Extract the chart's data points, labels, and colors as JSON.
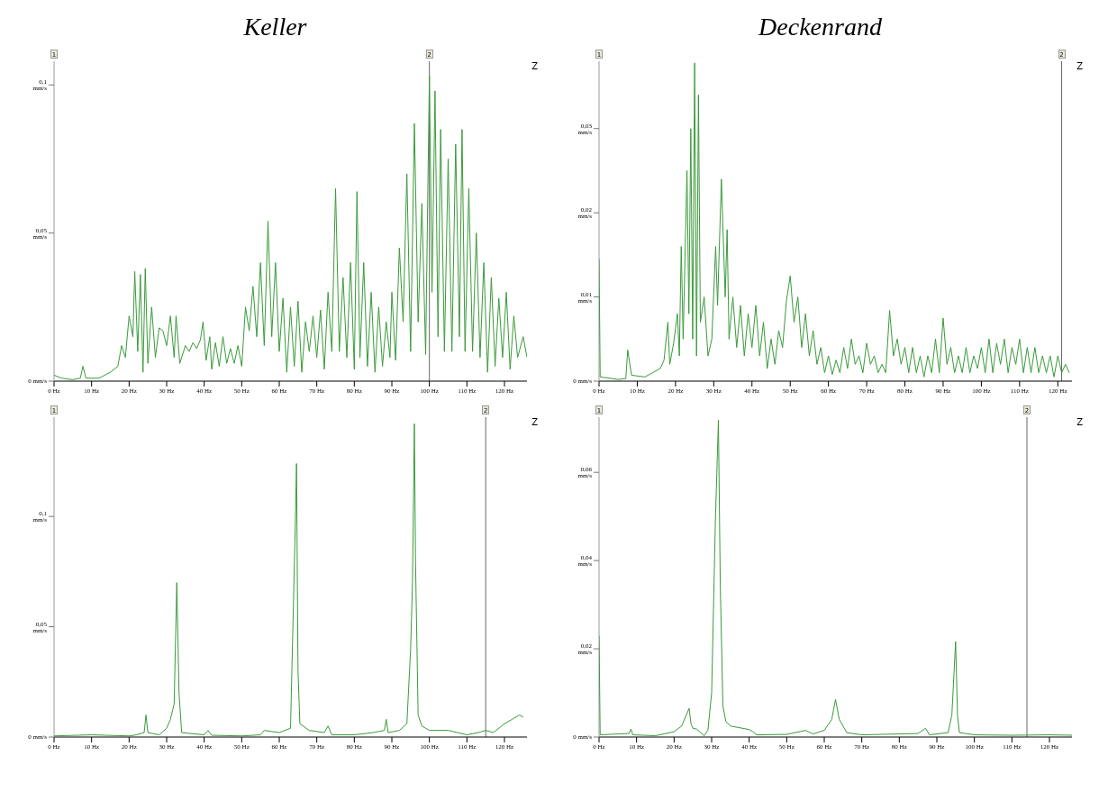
{
  "chart_data": [
    {
      "type": "line",
      "title": "Keller",
      "color": "#3a9a3a",
      "xlim": [
        0,
        126
      ],
      "ylim": [
        0,
        0.108
      ],
      "xticks": [
        {
          "value": 0,
          "label": "0 Hz"
        },
        {
          "value": 10,
          "label": "10 Hz"
        },
        {
          "value": 20,
          "label": "20 Hz"
        },
        {
          "value": 30,
          "label": "30 Hz"
        },
        {
          "value": 40,
          "label": "40 Hz"
        },
        {
          "value": 50,
          "label": "50 Hz"
        },
        {
          "value": 60,
          "label": "60 Hz"
        },
        {
          "value": 70,
          "label": "70 Hz"
        },
        {
          "value": 80,
          "label": "80 Hz"
        },
        {
          "value": 90,
          "label": "90 Hz"
        },
        {
          "value": 100,
          "label": "100 Hz"
        },
        {
          "value": 110,
          "label": "110 Hz"
        },
        {
          "value": 120,
          "label": "120 Hz"
        }
      ],
      "yticks": [
        {
          "value": 0,
          "label": "0 mm/s"
        },
        {
          "value": 0.05,
          "label": "0,05 mm/s"
        },
        {
          "value": 0.1,
          "label": "0,1 mm/s"
        }
      ],
      "x": [
        0,
        2,
        5,
        7,
        7.7,
        8.5,
        12,
        15,
        17,
        18,
        19,
        20,
        21,
        21.5,
        22.3,
        23,
        23.7,
        24.3,
        25,
        26,
        27,
        28,
        29,
        30,
        31,
        32,
        32.5,
        33.5,
        35,
        36,
        37,
        38,
        39,
        39.7,
        40.5,
        41.5,
        42,
        43,
        44,
        45,
        46,
        47,
        48,
        49,
        50,
        51,
        52,
        53,
        54,
        55,
        56,
        57,
        58,
        59,
        60,
        61,
        62,
        63,
        64,
        65,
        66,
        67,
        68,
        69,
        70,
        71,
        72,
        73,
        74,
        75,
        76,
        77,
        78,
        79,
        80,
        80.7,
        81.5,
        82.5,
        83.5,
        84.5,
        85.5,
        86.5,
        87.5,
        88.5,
        89.5,
        90,
        91,
        92,
        93,
        94,
        95,
        96,
        97,
        98,
        99,
        100,
        100.7,
        101.5,
        102.3,
        103,
        104,
        105,
        106,
        107,
        108,
        108.7,
        109.5,
        110.5,
        111.5,
        112.5,
        113.5,
        114.5,
        115.5,
        116.5,
        117.5,
        118.5,
        119.5,
        120.5,
        121.5,
        122.5,
        123.5,
        125,
        126
      ],
      "values": [
        0.002,
        0.001,
        0.0005,
        0.001,
        0.005,
        0.001,
        0.001,
        0.003,
        0.005,
        0.012,
        0.008,
        0.022,
        0.015,
        0.037,
        0.01,
        0.036,
        0.003,
        0.038,
        0.006,
        0.025,
        0.008,
        0.018,
        0.017,
        0.012,
        0.022,
        0.008,
        0.022,
        0.006,
        0.012,
        0.01,
        0.013,
        0.011,
        0.014,
        0.02,
        0.007,
        0.015,
        0.004,
        0.013,
        0.005,
        0.015,
        0.006,
        0.011,
        0.006,
        0.012,
        0.005,
        0.025,
        0.017,
        0.032,
        0.015,
        0.04,
        0.012,
        0.054,
        0.015,
        0.04,
        0.01,
        0.028,
        0.003,
        0.025,
        0.005,
        0.027,
        0.003,
        0.02,
        0.01,
        0.022,
        0.008,
        0.024,
        0.004,
        0.03,
        0.01,
        0.065,
        0.01,
        0.035,
        0.008,
        0.04,
        0.004,
        0.064,
        0.008,
        0.04,
        0.005,
        0.03,
        0.003,
        0.025,
        0.005,
        0.02,
        0.008,
        0.03,
        0.007,
        0.045,
        0.02,
        0.07,
        0.01,
        0.087,
        0.02,
        0.06,
        0.009,
        0.103,
        0.03,
        0.098,
        0.015,
        0.085,
        0.01,
        0.075,
        0.01,
        0.08,
        0.015,
        0.085,
        0.01,
        0.065,
        0.01,
        0.05,
        0.008,
        0.04,
        0.003,
        0.035,
        0.005,
        0.028,
        0.008,
        0.03,
        0.004,
        0.022,
        0.008,
        0.015,
        0.008
      ],
      "ref_lines": [
        {
          "axis": "x",
          "value": 100
        }
      ],
      "annotations": [
        "Z",
        "1",
        "2"
      ]
    },
    {
      "type": "line",
      "title": "Deckenrand",
      "color": "#3a9a3a",
      "xlim": [
        0,
        123.7
      ],
      "ylim": [
        0,
        0.038
      ],
      "xticks": [
        {
          "value": 0,
          "label": "0 Hz"
        },
        {
          "value": 10,
          "label": "10 Hz"
        },
        {
          "value": 20,
          "label": "20 Hz"
        },
        {
          "value": 30,
          "label": "30 Hz"
        },
        {
          "value": 40,
          "label": "40 Hz"
        },
        {
          "value": 50,
          "label": "50 Hz"
        },
        {
          "value": 60,
          "label": "60 Hz"
        },
        {
          "value": 70,
          "label": "70 Hz"
        },
        {
          "value": 80,
          "label": "80 Hz"
        },
        {
          "value": 90,
          "label": "90 Hz"
        },
        {
          "value": 100,
          "label": "100 Hz"
        },
        {
          "value": 110,
          "label": "110 Hz"
        },
        {
          "value": 120,
          "label": "120 Hz"
        }
      ],
      "yticks": [
        {
          "value": 0,
          "label": "0 mm/s"
        },
        {
          "value": 0.01,
          "label": "0,01 mm/s"
        },
        {
          "value": 0.02,
          "label": "0,02 mm/s"
        },
        {
          "value": 0.03,
          "label": "0,03 mm/s"
        }
      ],
      "x": [
        0,
        0.3,
        5,
        7,
        7.5,
        8.5,
        12,
        14,
        16,
        17,
        18,
        18.5,
        19.5,
        20.5,
        21,
        21.5,
        22,
        23,
        23.5,
        24,
        24.5,
        25,
        25.5,
        26,
        26.5,
        27.5,
        28.5,
        29.5,
        30.5,
        31,
        32,
        33,
        33.5,
        34,
        35,
        36,
        37,
        38,
        39,
        40,
        41,
        42,
        43,
        44,
        45,
        46,
        47,
        48,
        49,
        50,
        51,
        52,
        53,
        54,
        55,
        56,
        57,
        58,
        59,
        60,
        61,
        62,
        63,
        64,
        65,
        66,
        67,
        68,
        69,
        70,
        71,
        72,
        73,
        74,
        75,
        76,
        77,
        78,
        79,
        80,
        81,
        82,
        83,
        84,
        85,
        86,
        87,
        88,
        89,
        90,
        91,
        92,
        93,
        94,
        95,
        96,
        97,
        98,
        99,
        100,
        101,
        102,
        103,
        104,
        105,
        106,
        107,
        108,
        109,
        110,
        111,
        112,
        113,
        114,
        115,
        116,
        117,
        118,
        119,
        120,
        121,
        122,
        123
      ],
      "values": [
        0.0145,
        0.0005,
        0.0002,
        0.0003,
        0.0037,
        0.0007,
        0.0005,
        0.001,
        0.0015,
        0.0025,
        0.007,
        0.002,
        0.0045,
        0.008,
        0.003,
        0.016,
        0.005,
        0.025,
        0.008,
        0.03,
        0.005,
        0.0378,
        0.003,
        0.034,
        0.007,
        0.01,
        0.003,
        0.005,
        0.016,
        0.009,
        0.024,
        0.01,
        0.018,
        0.005,
        0.01,
        0.004,
        0.009,
        0.003,
        0.008,
        0.004,
        0.009,
        0.003,
        0.007,
        0.0015,
        0.005,
        0.002,
        0.006,
        0.004,
        0.0095,
        0.0125,
        0.007,
        0.01,
        0.004,
        0.008,
        0.003,
        0.006,
        0.002,
        0.004,
        0.001,
        0.003,
        0.0008,
        0.0025,
        0.001,
        0.004,
        0.0015,
        0.005,
        0.002,
        0.003,
        0.001,
        0.0045,
        0.002,
        0.003,
        0.001,
        0.002,
        0.001,
        0.0084,
        0.003,
        0.005,
        0.002,
        0.004,
        0.001,
        0.004,
        0.001,
        0.003,
        0.0005,
        0.003,
        0.001,
        0.005,
        0.001,
        0.0075,
        0.002,
        0.004,
        0.001,
        0.003,
        0.001,
        0.004,
        0.001,
        0.003,
        0.0015,
        0.004,
        0.001,
        0.005,
        0.001,
        0.0045,
        0.002,
        0.005,
        0.001,
        0.004,
        0.002,
        0.005,
        0.001,
        0.004,
        0.001,
        0.004,
        0.001,
        0.003,
        0.001,
        0.003,
        0.0005,
        0.003,
        0.001,
        0.002,
        0.001
      ],
      "ref_lines": [
        {
          "axis": "x",
          "value": 121
        }
      ],
      "annotations": [
        "Z",
        "1",
        "2"
      ]
    },
    {
      "type": "line",
      "color": "#3a9a3a",
      "xlim": [
        0,
        126
      ],
      "ylim": [
        0,
        0.145
      ],
      "xticks": [
        {
          "value": 0,
          "label": "0 Hz"
        },
        {
          "value": 10,
          "label": "10 Hz"
        },
        {
          "value": 20,
          "label": "20 Hz"
        },
        {
          "value": 30,
          "label": "30 Hz"
        },
        {
          "value": 40,
          "label": "40 Hz"
        },
        {
          "value": 50,
          "label": "50 Hz"
        },
        {
          "value": 60,
          "label": "60 Hz"
        },
        {
          "value": 70,
          "label": "70 Hz"
        },
        {
          "value": 80,
          "label": "80 Hz"
        },
        {
          "value": 90,
          "label": "90 Hz"
        },
        {
          "value": 100,
          "label": "100 Hz"
        },
        {
          "value": 110,
          "label": "110 Hz"
        },
        {
          "value": 120,
          "label": "120 Hz"
        }
      ],
      "yticks": [
        {
          "value": 0,
          "label": "0 mm/s"
        },
        {
          "value": 0.05,
          "label": "0,05 mm/s"
        },
        {
          "value": 0.1,
          "label": "0,1 mm/s"
        }
      ],
      "x": [
        0,
        10,
        20,
        22,
        24,
        24.5,
        25,
        28,
        30,
        31,
        32,
        32.7,
        33.3,
        34,
        40,
        41,
        42,
        50,
        55,
        56,
        60,
        63,
        64.3,
        64.6,
        65,
        65.5,
        68,
        72,
        73,
        74,
        80,
        85,
        88,
        88.5,
        89,
        92,
        94,
        95,
        95.5,
        96,
        96.3,
        96.7,
        97,
        98,
        100,
        105,
        110,
        113,
        115,
        117,
        120,
        122,
        124,
        125
      ],
      "values": [
        0.0005,
        0.001,
        0.0005,
        0.001,
        0.002,
        0.01,
        0.002,
        0.001,
        0.004,
        0.008,
        0.015,
        0.07,
        0.02,
        0.002,
        0.001,
        0.003,
        0.0008,
        0.0005,
        0.001,
        0.003,
        0.002,
        0.004,
        0.098,
        0.124,
        0.03,
        0.006,
        0.003,
        0.002,
        0.005,
        0.001,
        0.001,
        0.002,
        0.003,
        0.008,
        0.002,
        0.003,
        0.006,
        0.04,
        0.07,
        0.142,
        0.08,
        0.04,
        0.01,
        0.005,
        0.003,
        0.003,
        0.001,
        0.002,
        0.003,
        0.002,
        0.006,
        0.008,
        0.01,
        0.009
      ],
      "ref_lines": [
        {
          "axis": "x",
          "value": 115
        }
      ],
      "annotations": [
        "Z",
        "1",
        "2"
      ]
    },
    {
      "type": "line",
      "color": "#3a9a3a",
      "xlim": [
        0,
        126
      ],
      "ylim": [
        0,
        0.0725
      ],
      "xticks": [
        {
          "value": 0,
          "label": "0 Hz"
        },
        {
          "value": 10,
          "label": "10 Hz"
        },
        {
          "value": 20,
          "label": "20 Hz"
        },
        {
          "value": 30,
          "label": "30 Hz"
        },
        {
          "value": 40,
          "label": "40 Hz"
        },
        {
          "value": 50,
          "label": "50 Hz"
        },
        {
          "value": 60,
          "label": "60 Hz"
        },
        {
          "value": 70,
          "label": "70 Hz"
        },
        {
          "value": 80,
          "label": "80 Hz"
        },
        {
          "value": 90,
          "label": "90 Hz"
        },
        {
          "value": 100,
          "label": "100 Hz"
        },
        {
          "value": 110,
          "label": "110 Hz"
        },
        {
          "value": 120,
          "label": "120 Hz"
        }
      ],
      "yticks": [
        {
          "value": 0,
          "label": "0 mm/s"
        },
        {
          "value": 0.02,
          "label": "0,02 mm/s"
        },
        {
          "value": 0.04,
          "label": "0,04 mm/s"
        },
        {
          "value": 0.06,
          "label": "0,06 mm/s"
        }
      ],
      "x": [
        0,
        0.3,
        5,
        8,
        8.5,
        9,
        15,
        20,
        22,
        24,
        24.5,
        25,
        26,
        28,
        29,
        30,
        31,
        31.8,
        32.3,
        33,
        33.8,
        35,
        40,
        41,
        42,
        50,
        55,
        57,
        60,
        62,
        63,
        64,
        66,
        70,
        80,
        85,
        87,
        88,
        93,
        94,
        95,
        95.5,
        96,
        100,
        110,
        120,
        126
      ],
      "values": [
        0.023,
        0.0005,
        0.0007,
        0.0008,
        0.0018,
        0.0005,
        0.0003,
        0.0012,
        0.0025,
        0.0065,
        0.003,
        0.002,
        0.0018,
        0.0003,
        0.0015,
        0.01,
        0.049,
        0.0718,
        0.0345,
        0.007,
        0.0035,
        0.0025,
        0.0017,
        0.0012,
        0.0005,
        0.0006,
        0.0015,
        0.0007,
        0.0015,
        0.004,
        0.0085,
        0.004,
        0.001,
        0.0005,
        0.0007,
        0.0008,
        0.002,
        0.0005,
        0.001,
        0.005,
        0.0216,
        0.005,
        0.001,
        0.0005,
        0.0004,
        0.0005,
        0.0004
      ],
      "ref_lines": [
        {
          "axis": "x",
          "value": 114
        }
      ],
      "annotations": [
        "Z",
        "1",
        "2"
      ]
    }
  ]
}
